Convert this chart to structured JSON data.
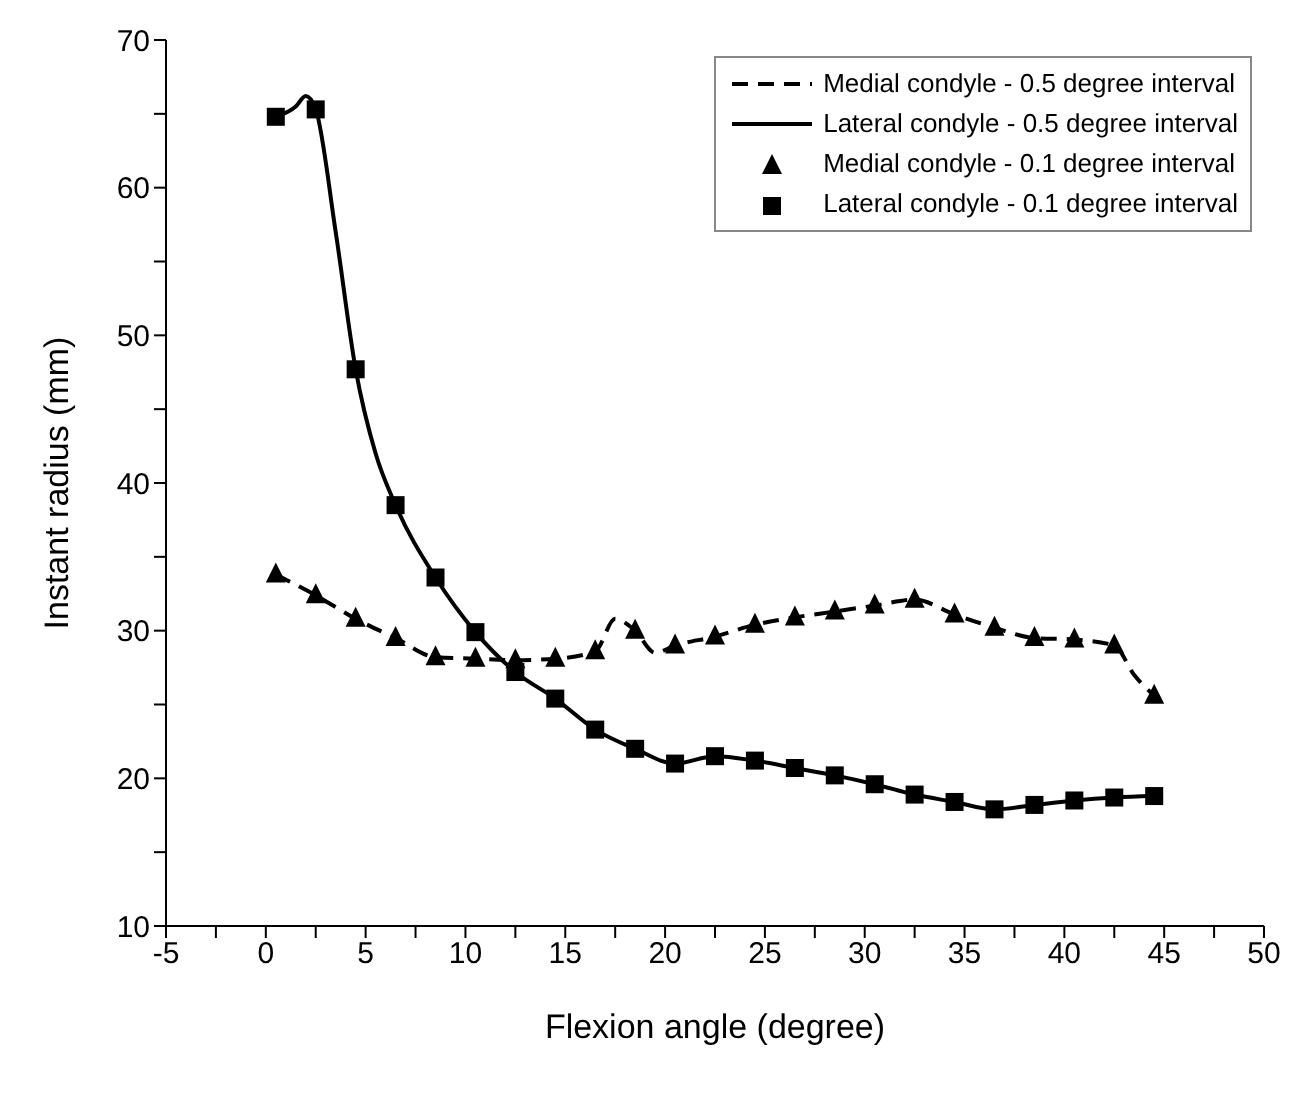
{
  "chart_data": {
    "type": "line",
    "xlabel": "Flexion angle (degree)",
    "ylabel": "Instant radius (mm)",
    "xlim": [
      -5,
      50
    ],
    "ylim": [
      10,
      70
    ],
    "xticks": [
      -5,
      {
        "value": -2.5,
        "label": null
      },
      0,
      {
        "value": 2.5,
        "label": null
      },
      5,
      {
        "value": 7.5,
        "label": null
      },
      10,
      {
        "value": 12.5,
        "label": null
      },
      15,
      {
        "value": 17.5,
        "label": null
      },
      20,
      {
        "value": 22.5,
        "label": null
      },
      25,
      {
        "value": 27.5,
        "label": null
      },
      30,
      {
        "value": 32.5,
        "label": null
      },
      35,
      {
        "value": 37.5,
        "label": null
      },
      40,
      {
        "value": 42.5,
        "label": null
      },
      45,
      {
        "value": 47.5,
        "label": null
      },
      50
    ],
    "yticks": [
      10,
      {
        "value": 15,
        "label": null
      },
      20,
      {
        "value": 25,
        "label": null
      },
      30,
      {
        "value": 35,
        "label": null
      },
      40,
      {
        "value": 45,
        "label": null
      },
      50,
      {
        "value": 55,
        "label": null
      },
      60,
      {
        "value": 65,
        "label": null
      },
      70
    ],
    "grid": false,
    "legend": "top right",
    "series": [
      {
        "name": "Medial condyle - 0.5 degree interval",
        "color": "#000000",
        "line_style": "dashed",
        "marker": "none",
        "x": [
          0.5,
          2.5,
          4.5,
          6.5,
          8.5,
          10.5,
          12.5,
          14.5,
          16.5,
          17.5,
          18.5,
          19.5,
          20.5,
          22.5,
          24.5,
          26.5,
          28.5,
          30.5,
          32.5,
          34.5,
          36.5,
          38.5,
          40.5,
          42.5,
          43.5,
          44.5
        ],
        "values": [
          33.8,
          32.4,
          30.8,
          29.5,
          28.2,
          28.1,
          28.0,
          28.1,
          28.6,
          30.8,
          30.0,
          28.5,
          29.0,
          29.6,
          30.4,
          30.9,
          31.3,
          31.7,
          32.1,
          31.1,
          30.2,
          29.5,
          29.4,
          29.0,
          27.0,
          25.6
        ]
      },
      {
        "name": "Lateral condyle - 0.5 degree interval",
        "color": "#000000",
        "line_style": "solid",
        "marker": "none",
        "x": [
          0.5,
          1.5,
          2.0,
          2.5,
          3.5,
          4.5,
          5.5,
          6.5,
          8.5,
          10.5,
          12.5,
          14.5,
          16.5,
          18.5,
          20.5,
          22.5,
          24.5,
          26.5,
          28.5,
          30.5,
          32.5,
          34.5,
          36.5,
          38.5,
          40.5,
          42.5,
          44.5
        ],
        "values": [
          64.8,
          65.5,
          66.2,
          65.3,
          57.0,
          47.7,
          42.0,
          38.5,
          33.6,
          29.9,
          27.2,
          25.4,
          23.3,
          22.0,
          21.0,
          21.5,
          21.2,
          20.7,
          20.2,
          19.6,
          18.9,
          18.4,
          17.9,
          18.2,
          18.5,
          18.7,
          18.8
        ]
      },
      {
        "name": "Medial condyle - 0.1 degree interval",
        "type": "scatter",
        "color": "#000000",
        "marker": "triangle",
        "x": [
          0.5,
          2.5,
          4.5,
          6.5,
          8.5,
          10.5,
          12.5,
          14.5,
          16.5,
          18.5,
          20.5,
          22.5,
          24.5,
          26.5,
          28.5,
          30.5,
          32.5,
          34.5,
          36.5,
          38.5,
          40.5,
          42.5,
          44.5
        ],
        "values": [
          33.8,
          32.4,
          30.8,
          29.5,
          28.2,
          28.1,
          28.0,
          28.1,
          28.6,
          30.0,
          29.0,
          29.6,
          30.4,
          30.9,
          31.3,
          31.7,
          32.1,
          31.1,
          30.2,
          29.5,
          29.4,
          29.0,
          25.6
        ]
      },
      {
        "name": "Lateral condyle - 0.1 degree interval",
        "type": "scatter",
        "color": "#000000",
        "marker": "square",
        "x": [
          0.5,
          2.5,
          4.5,
          6.5,
          8.5,
          10.5,
          12.5,
          14.5,
          16.5,
          18.5,
          20.5,
          22.5,
          24.5,
          26.5,
          28.5,
          30.5,
          32.5,
          34.5,
          36.5,
          38.5,
          40.5,
          42.5,
          44.5
        ],
        "values": [
          64.8,
          65.3,
          47.7,
          38.5,
          33.6,
          29.9,
          27.2,
          25.4,
          23.3,
          22.0,
          21.0,
          21.5,
          21.2,
          20.7,
          20.2,
          19.6,
          18.9,
          18.4,
          17.9,
          18.2,
          18.5,
          18.7,
          18.8
        ]
      }
    ]
  }
}
